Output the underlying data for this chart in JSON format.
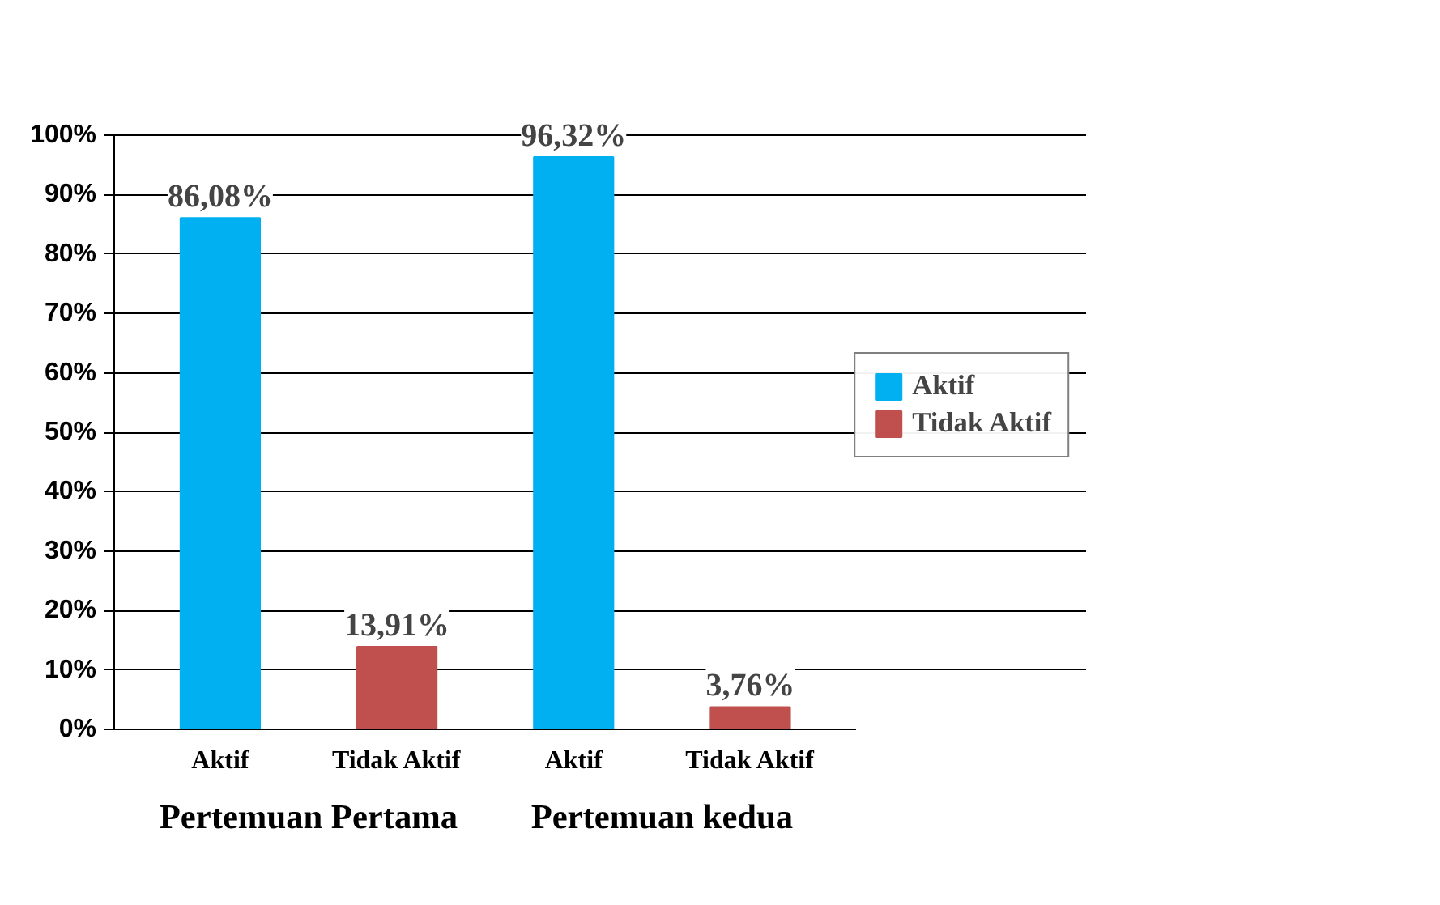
{
  "chart_data": {
    "type": "bar",
    "categories": [
      "Aktif",
      "Tidak Aktif",
      "Aktif",
      "Tidak Aktif"
    ],
    "series": [
      {
        "name": "Aktif",
        "color": "#00b0f0",
        "values": [
          86.08,
          null,
          96.32,
          null
        ],
        "value_labels": [
          "86,08%",
          null,
          "96,32%",
          null
        ]
      },
      {
        "name": "Tidak Aktif",
        "color": "#c0504d",
        "values": [
          null,
          13.91,
          null,
          3.76
        ],
        "value_labels": [
          null,
          "13,91%",
          null,
          "3,76%"
        ]
      }
    ],
    "annotations": [
      "Pertemuan Pertama",
      "Pertemuan kedua"
    ],
    "ylim": [
      0,
      100
    ],
    "yticks": [
      {
        "value": 0,
        "label": "0%"
      },
      {
        "value": 10,
        "label": "10%"
      },
      {
        "value": 20,
        "label": "20%"
      },
      {
        "value": 30,
        "label": "30%"
      },
      {
        "value": 40,
        "label": "40%"
      },
      {
        "value": 50,
        "label": "50%"
      },
      {
        "value": 60,
        "label": "60%"
      },
      {
        "value": 70,
        "label": "70%"
      },
      {
        "value": 80,
        "label": "80%"
      },
      {
        "value": 90,
        "label": "90%"
      },
      {
        "value": 100,
        "label": "100%"
      }
    ],
    "grid": "y",
    "legend": "right"
  }
}
